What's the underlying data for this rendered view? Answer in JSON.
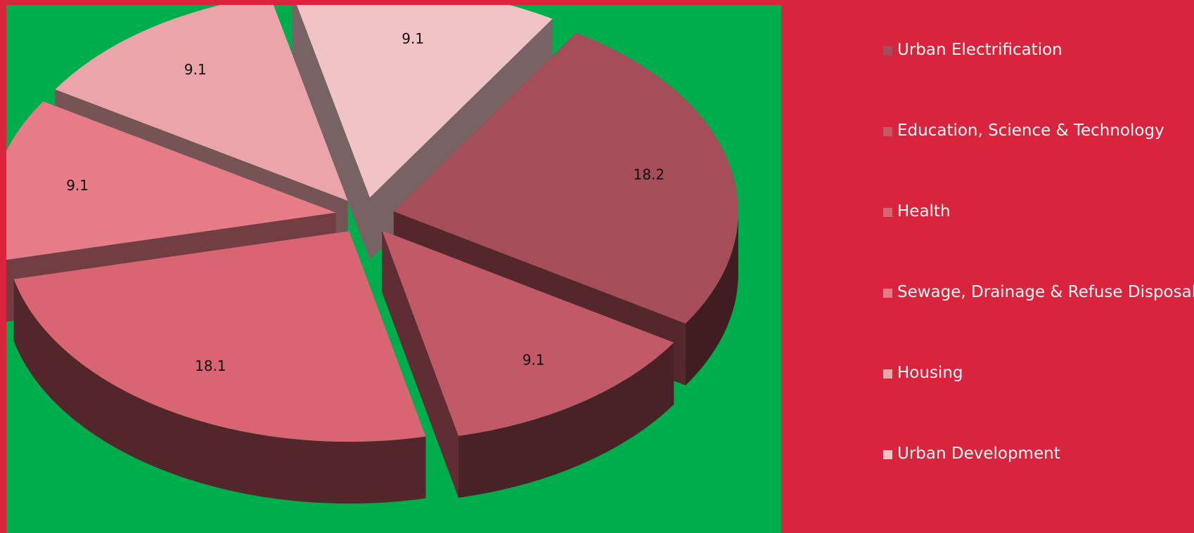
{
  "chart_data": {
    "type": "pie",
    "three_d": true,
    "exploded": true,
    "title": "",
    "categories": [
      "Urban Electrification",
      "Education, Science & Technology",
      "Health",
      "Sewage, Drainage & Refuse Disposal",
      "Housing",
      "Urban Development"
    ],
    "values": [
      18.2,
      9.1,
      18.1,
      9.1,
      9.1,
      9.1
    ],
    "data_labels": [
      "18.2",
      "9.1",
      "18.1",
      "9.1",
      "9.1",
      "9.1"
    ],
    "colors": [
      "#a54d58",
      "#c15967",
      "#d96572",
      "#e67c86",
      "#eba5aa",
      "#f0c3c7"
    ],
    "legend_position": "right",
    "background_color": "#d9243d",
    "plot_area_color": "#00ad4d"
  }
}
